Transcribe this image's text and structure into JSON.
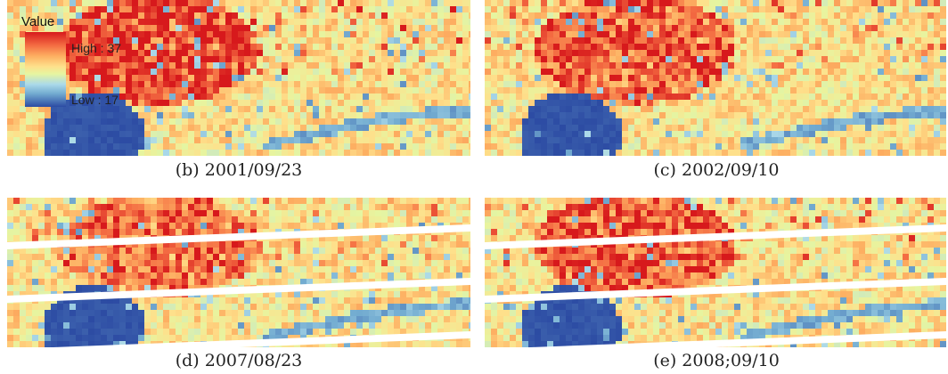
{
  "legend": {
    "title": "Value",
    "high_label": "High : 37",
    "low_label": "Low : 17",
    "high_value": 37,
    "low_value": 17,
    "colors": [
      "#d7191c",
      "#f46d43",
      "#fdae61",
      "#fee08b",
      "#e6f5a0",
      "#abd9e9",
      "#74add1",
      "#2c4ba3"
    ]
  },
  "panels": [
    {
      "caption": "(b) 2001/09/23",
      "has_scan_gaps": false
    },
    {
      "caption": "(c) 2002/09/10",
      "has_scan_gaps": false
    },
    {
      "caption": "(d) 2007/08/23",
      "has_scan_gaps": true
    },
    {
      "caption": "(e) 2008;09/10",
      "has_scan_gaps": true
    }
  ]
}
